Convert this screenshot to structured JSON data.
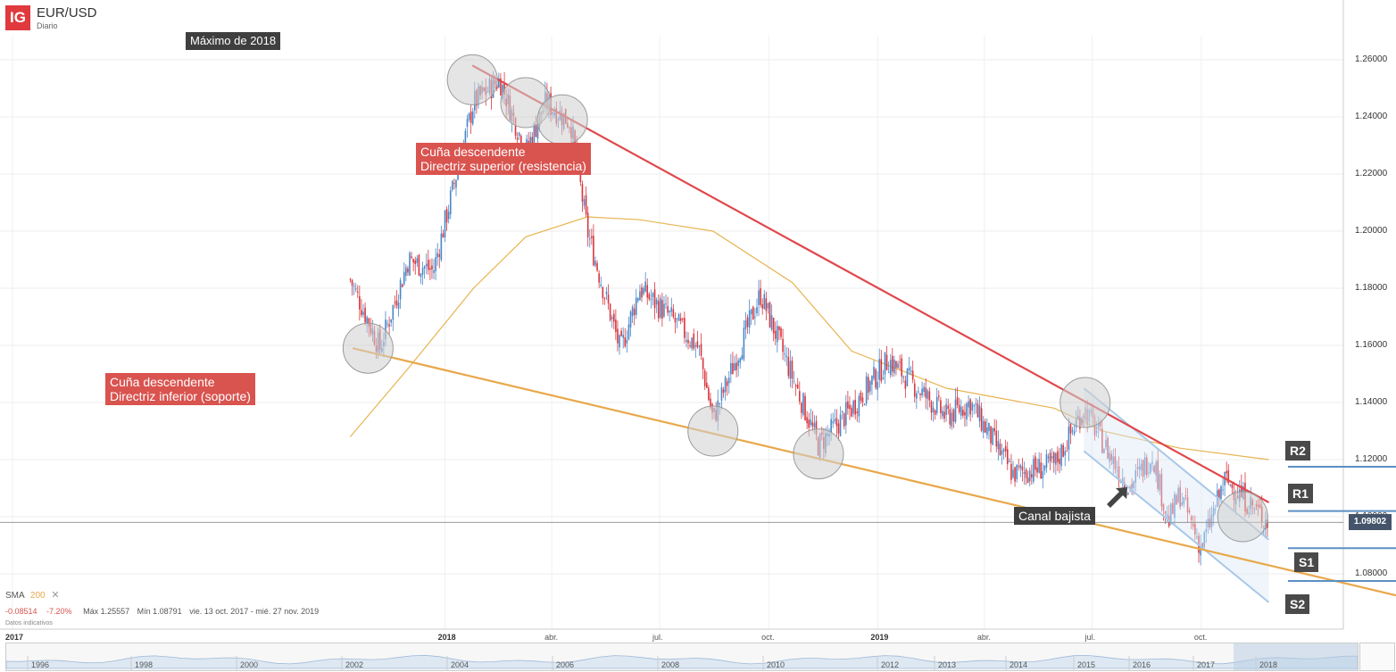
{
  "header": {
    "logo": "IG",
    "symbol": "EUR/USD",
    "period": "Diario"
  },
  "annotations": {
    "max2018": "Máximo de 2018",
    "upper_line": [
      "Cuña descendente",
      "Directriz superior (resistencia)"
    ],
    "lower_line": [
      "Cuña descendente",
      "Directriz inferior (soporte)"
    ],
    "channel": "Canal bajista"
  },
  "levels": {
    "r2": "R2",
    "r1": "R1",
    "s1": "S1",
    "s2": "S2"
  },
  "current_price": "1.09802",
  "indicator": {
    "name": "SMA",
    "period": "200",
    "close_icon": "close-icon"
  },
  "stats": {
    "change": "-0.08514",
    "change_pct": "-7.20%",
    "max": "Máx 1.25557",
    "min": "Mín 1.08791",
    "range": "vie. 13 oct. 2017 - mié. 27 nov. 2019",
    "note": "Datos indicativos"
  },
  "navigator_labels": [
    "1996",
    "1998",
    "2000",
    "2002",
    "2004",
    "2006",
    "2008",
    "2010",
    "2012",
    "2013",
    "2014",
    "2015",
    "2016",
    "2017",
    "2018"
  ],
  "colors": {
    "up": "#4a86c8",
    "down": "#d9363e",
    "resistance": "#e0484c",
    "support": "#e8a84a",
    "sma": "#e8b450",
    "channel": "#a9c8e8"
  },
  "chart_data": {
    "type": "candlestick",
    "title": "EUR/USD",
    "ylim": [
      1.07,
      1.265
    ],
    "y_ticks": [
      "1.26000",
      "1.24000",
      "1.22000",
      "1.20000",
      "1.18000",
      "1.16000",
      "1.14000",
      "1.12000",
      "1.10000",
      "1.08000"
    ],
    "x_ticks": [
      "2017",
      "2018",
      "abr.",
      "jul.",
      "oct.",
      "2019",
      "abr.",
      "jul.",
      "oct."
    ],
    "close_path": [
      [
        "2017-10-13",
        1.183
      ],
      [
        "2017-11-07",
        1.159
      ],
      [
        "2017-12-01",
        1.19
      ],
      [
        "2017-12-22",
        1.186
      ],
      [
        "2018-01-25",
        1.245
      ],
      [
        "2018-02-16",
        1.253
      ],
      [
        "2018-03-10",
        1.228
      ],
      [
        "2018-03-27",
        1.245
      ],
      [
        "2018-04-17",
        1.238
      ],
      [
        "2018-05-01",
        1.2
      ],
      [
        "2018-05-29",
        1.158
      ],
      [
        "2018-06-14",
        1.18
      ],
      [
        "2018-07-10",
        1.17
      ],
      [
        "2018-08-03",
        1.159
      ],
      [
        "2018-08-15",
        1.134
      ],
      [
        "2018-09-24",
        1.178
      ],
      [
        "2018-10-21",
        1.149
      ],
      [
        "2018-11-12",
        1.125
      ],
      [
        "2018-12-10",
        1.138
      ],
      [
        "2019-01-10",
        1.155
      ],
      [
        "2019-02-28",
        1.135
      ],
      [
        "2019-03-20",
        1.14
      ],
      [
        "2019-04-25",
        1.115
      ],
      [
        "2019-05-30",
        1.118
      ],
      [
        "2019-06-24",
        1.138
      ],
      [
        "2019-07-10",
        1.126
      ],
      [
        "2019-08-01",
        1.11
      ],
      [
        "2019-08-21",
        1.122
      ],
      [
        "2019-09-03",
        1.098
      ],
      [
        "2019-09-13",
        1.108
      ],
      [
        "2019-10-01",
        1.089
      ],
      [
        "2019-10-21",
        1.113
      ],
      [
        "2019-11-27",
        1.098
      ]
    ],
    "sma200": [
      [
        "2017-10-13",
        1.128
      ],
      [
        "2017-12-01",
        1.152
      ],
      [
        "2018-01-25",
        1.18
      ],
      [
        "2018-03-10",
        1.198
      ],
      [
        "2018-05-01",
        1.205
      ],
      [
        "2018-06-14",
        1.204
      ],
      [
        "2018-08-15",
        1.2
      ],
      [
        "2018-10-21",
        1.182
      ],
      [
        "2018-12-10",
        1.158
      ],
      [
        "2019-02-28",
        1.145
      ],
      [
        "2019-05-30",
        1.138
      ],
      [
        "2019-07-10",
        1.13
      ],
      [
        "2019-09-13",
        1.124
      ],
      [
        "2019-11-27",
        1.12
      ]
    ],
    "resistance_line": [
      [
        "2018-01-24",
        1.258
      ],
      [
        "2019-11-27",
        1.105
      ]
    ],
    "support_line": [
      [
        "2017-10-15",
        1.159
      ],
      [
        "2019-11-27",
        1.083
      ]
    ],
    "channel_upper": [
      [
        "2019-06-24",
        1.145
      ],
      [
        "2019-11-27",
        1.092
      ]
    ],
    "channel_lower": [
      [
        "2019-06-24",
        1.123
      ],
      [
        "2019-11-27",
        1.07
      ]
    ],
    "horizontal_levels": {
      "R2": 1.1175,
      "R1": 1.102,
      "S1": 1.089,
      "S2": 1.0775
    },
    "circled_points": [
      [
        "2017-10-28",
        1.159
      ],
      [
        "2018-01-24",
        1.253
      ],
      [
        "2018-03-10",
        1.245
      ],
      [
        "2018-04-10",
        1.239
      ],
      [
        "2018-08-15",
        1.13
      ],
      [
        "2018-11-12",
        1.122
      ],
      [
        "2019-06-25",
        1.14
      ],
      [
        "2019-11-05",
        1.1
      ]
    ]
  }
}
